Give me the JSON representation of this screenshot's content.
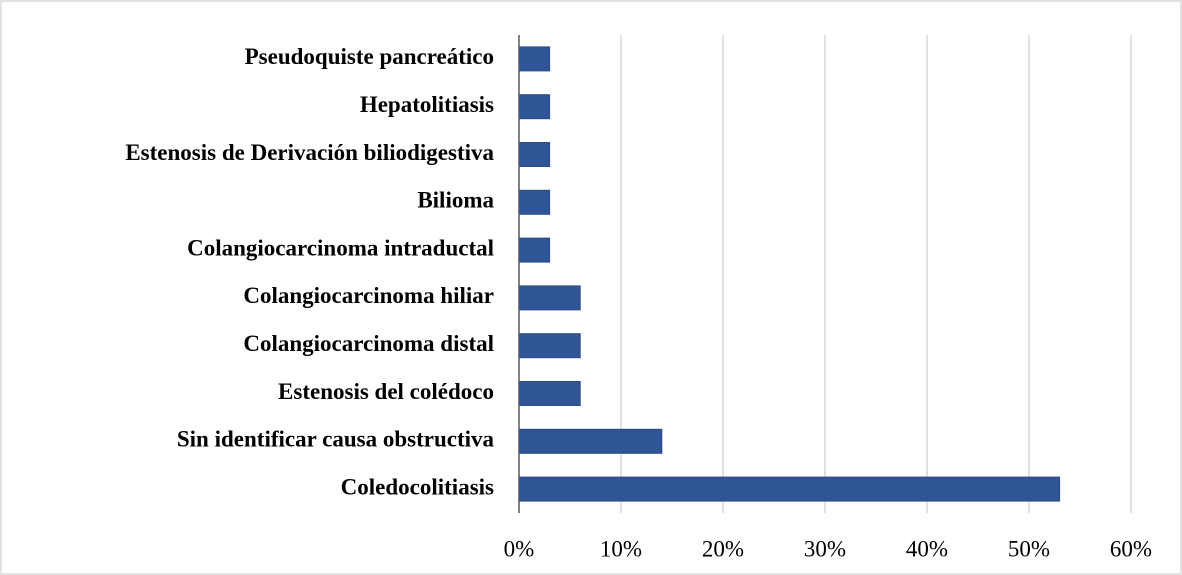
{
  "chart_data": {
    "type": "bar",
    "orientation": "horizontal",
    "categories": [
      "Pseudoquiste pancreático",
      "Hepatolitiasis",
      "Estenosis de Derivación biliodigestiva",
      "Bilioma",
      "Colangiocarcinoma intraductal",
      "Colangiocarcinoma hiliar",
      "Colangiocarcinoma distal",
      "Estenosis del colédoco",
      "Sin identificar causa obstructiva",
      "Coledocolitiasis"
    ],
    "values": [
      3,
      3,
      3,
      3,
      3,
      6,
      6,
      6,
      14,
      53
    ],
    "color": "#2f5597",
    "xlim": [
      0,
      60
    ],
    "xticks": [
      {
        "value": 0,
        "label": "0%"
      },
      {
        "value": 10,
        "label": "10%"
      },
      {
        "value": 20,
        "label": "20%"
      },
      {
        "value": 30,
        "label": "30%"
      },
      {
        "value": 40,
        "label": "40%"
      },
      {
        "value": 50,
        "label": "50%"
      },
      {
        "value": 60,
        "label": "60%"
      }
    ],
    "grid": true
  }
}
